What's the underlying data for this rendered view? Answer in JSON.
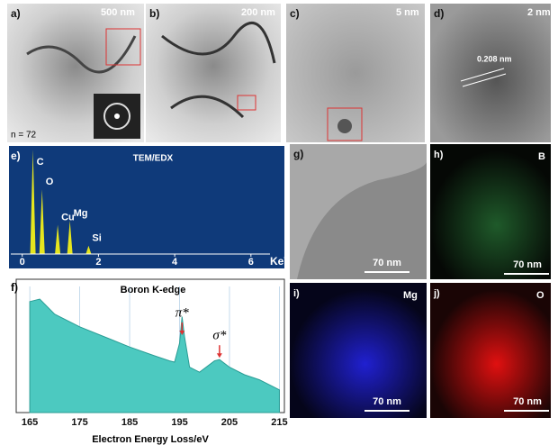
{
  "panels": {
    "a": {
      "label": "a)",
      "scale": "500 nm",
      "note": "n = 72"
    },
    "b": {
      "label": "b)",
      "scale": "200 nm"
    },
    "c": {
      "label": "c)",
      "scale": "5 nm"
    },
    "d": {
      "label": "d)",
      "scale": "2 nm",
      "spacing": "0.208 nm"
    },
    "g": {
      "label": "g)",
      "scale": "70 nm"
    },
    "h": {
      "label": "h)",
      "element": "B",
      "scale": "70 nm"
    },
    "i": {
      "label": "i)",
      "element": "Mg",
      "scale": "70 nm"
    },
    "j": {
      "label": "j)",
      "element": "O",
      "scale": "70 nm"
    }
  },
  "chart_data": [
    {
      "type": "bar",
      "panel_label": "e)",
      "title": "TEM/EDX",
      "x": [
        0.28,
        0.52,
        0.93,
        1.25,
        1.74
      ],
      "values": [
        100,
        62,
        28,
        32,
        8
      ],
      "peak_labels": [
        "C",
        "O",
        "Cu",
        "Mg",
        "Si"
      ],
      "color": "#e6e61e",
      "xlim": [
        -0.3,
        6.5
      ],
      "xticks": [
        0,
        2,
        4,
        6
      ],
      "x_unit": "KeV",
      "ylim": [
        0,
        100
      ]
    },
    {
      "type": "area",
      "panel_label": "f)",
      "title": "Boron K-edge",
      "x": [
        165,
        167,
        170,
        175,
        180,
        185,
        190,
        193,
        194,
        195,
        195.5,
        196,
        197,
        199,
        201,
        202,
        203,
        205,
        208,
        211,
        213,
        215
      ],
      "values": [
        88,
        90,
        78,
        68,
        60,
        52,
        45,
        41,
        40,
        55,
        76,
        60,
        36,
        32,
        38,
        41,
        42,
        36,
        30,
        26,
        22,
        18
      ],
      "color": "#4cc9c0",
      "xlim": [
        163,
        216
      ],
      "xticks": [
        165,
        175,
        185,
        195,
        205,
        215
      ],
      "xlabel": "Electron Energy Loss/eV",
      "ylim": [
        0,
        100
      ],
      "grid": true,
      "annotations": [
        {
          "text": "π*",
          "x": 195.5
        },
        {
          "text": "σ*",
          "x": 203
        }
      ]
    }
  ]
}
